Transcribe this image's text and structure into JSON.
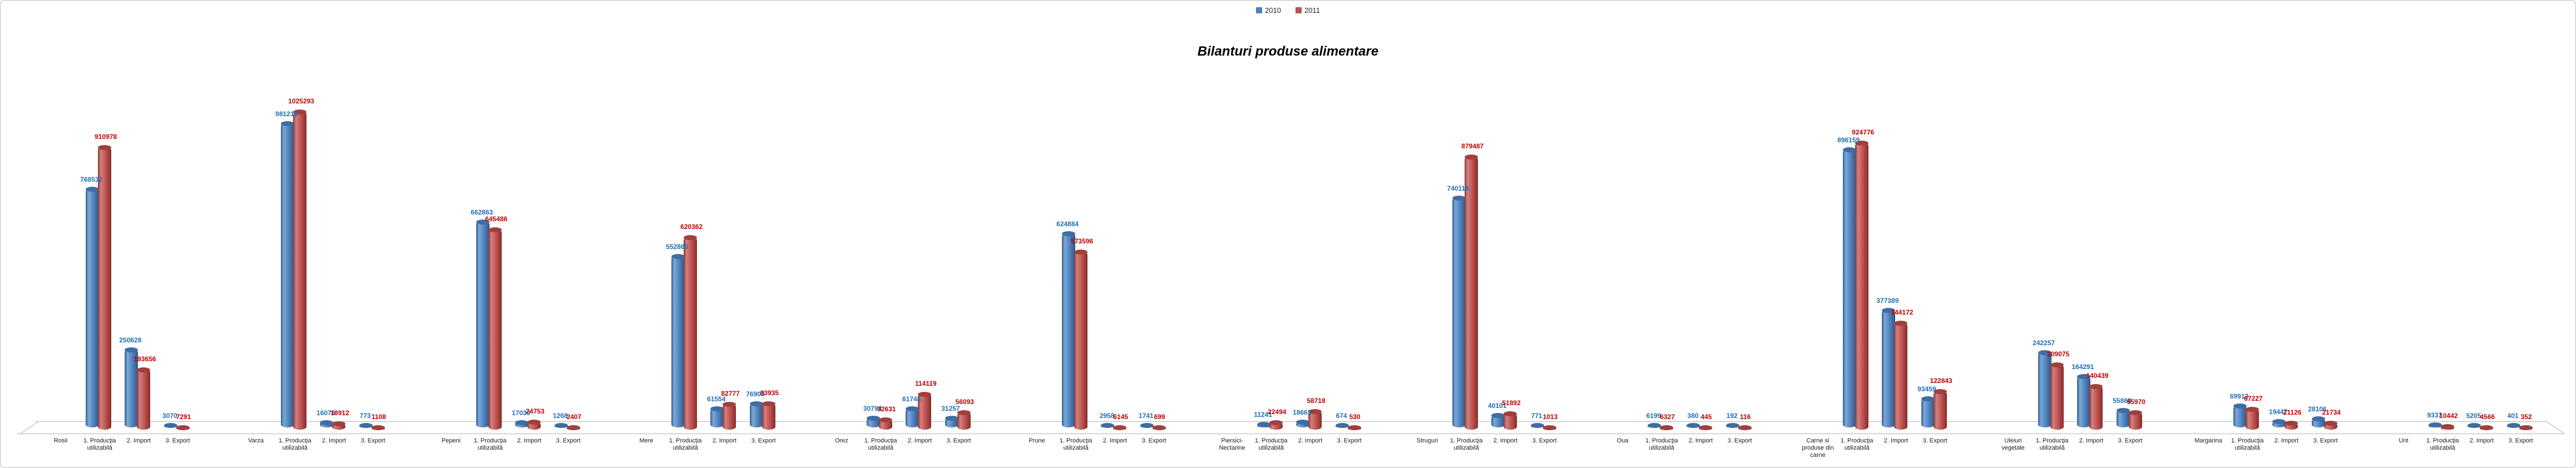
{
  "title": "Bilanturi produse alimentare",
  "legend": [
    {
      "label": "2010",
      "color": "#4F81BD"
    },
    {
      "label": "2011",
      "color": "#C0504D"
    }
  ],
  "chart_data": {
    "type": "bar",
    "style": "3d-cylinder",
    "title": "Bilanturi produse alimentare",
    "xlabel": "",
    "ylabel": "",
    "ylim": [
      0,
      1100000
    ],
    "grid": false,
    "legend_position": "top-center",
    "value_labels_shown": true,
    "series_names": [
      "2010",
      "2011"
    ],
    "series_colors": [
      "#4F81BD",
      "#C0504D"
    ],
    "value_label_colors": [
      "#1F6FB5",
      "#C00000"
    ],
    "metric_labels": [
      "1. Producţia utilizabilă",
      "2. Import",
      "3. Export"
    ],
    "products": [
      {
        "name": "Rosii",
        "values_2010": [
          768532,
          250628,
          3070
        ],
        "values_2011": [
          910978,
          193656,
          7291
        ]
      },
      {
        "name": "Varza",
        "values_2010": [
          981219,
          16076,
          773
        ],
        "values_2011": [
          1025293,
          18912,
          1108
        ]
      },
      {
        "name": "Pepeni",
        "values_2010": [
          662863,
          17030,
          1268
        ],
        "values_2011": [
          645486,
          24753,
          2407
        ]
      },
      {
        "name": "Mere",
        "values_2010": [
          552860,
          61554,
          76903
        ],
        "values_2011": [
          620362,
          82777,
          83935
        ]
      },
      {
        "name": "Orez",
        "values_2010": [
          30794,
          61748,
          31257
        ],
        "values_2011": [
          32631,
          114119,
          56093
        ]
      },
      {
        "name": "Prune",
        "values_2010": [
          624884,
          2958,
          1741
        ],
        "values_2011": [
          573596,
          6145,
          699
        ]
      },
      {
        "name": "Piersici-Nectarine",
        "values_2010": [
          11241,
          18663,
          674
        ],
        "values_2011": [
          22494,
          58718,
          530
        ]
      },
      {
        "name": "Struguri",
        "values_2010": [
          740118,
          40101,
          771
        ],
        "values_2011": [
          879487,
          51892,
          1013
        ]
      },
      {
        "name": "Oua",
        "values_2010": [
          6199,
          380,
          192
        ],
        "values_2011": [
          6327,
          445,
          116
        ]
      },
      {
        "name": "Carne si produse din carne",
        "values_2010": [
          896159,
          377389,
          93459
        ],
        "values_2011": [
          924776,
          344172,
          122843
        ]
      },
      {
        "name": "Uleiuri vegetale",
        "values_2010": [
          242257,
          164291,
          55868
        ],
        "values_2011": [
          209075,
          140439,
          55970
        ]
      },
      {
        "name": "Margarina",
        "values_2010": [
          69913,
          19447,
          28106
        ],
        "values_2011": [
          67227,
          21126,
          21734
        ]
      },
      {
        "name": "Unt",
        "values_2010": [
          9337,
          5205,
          401
        ],
        "values_2011": [
          10442,
          4566,
          352
        ]
      }
    ]
  }
}
